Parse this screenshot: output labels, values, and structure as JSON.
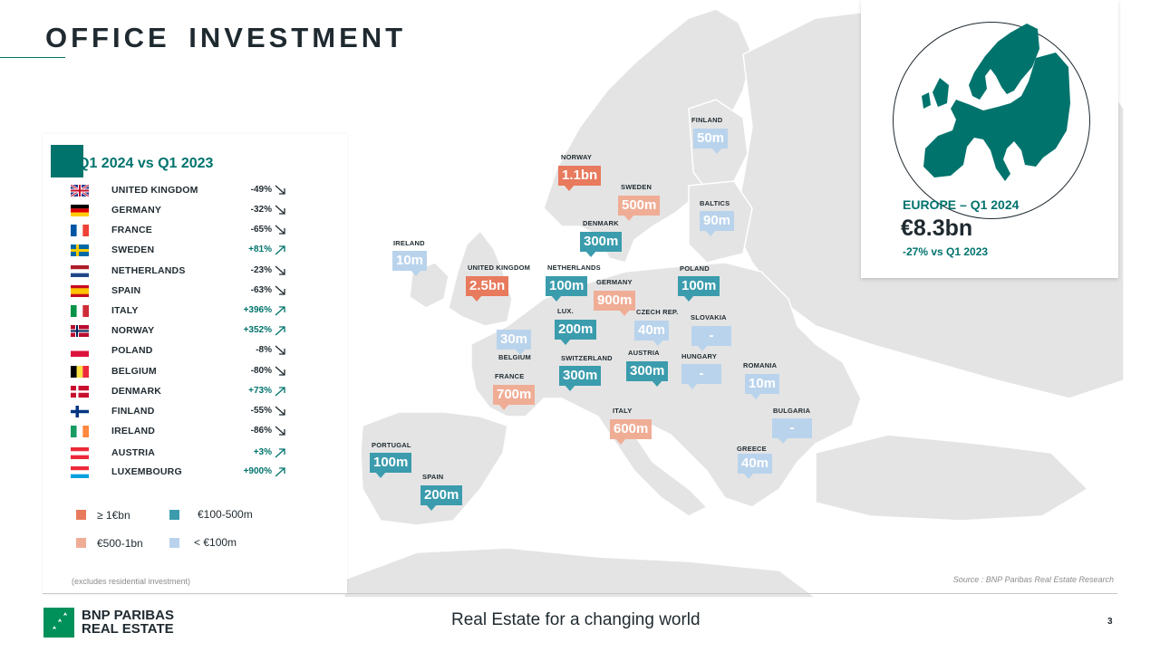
{
  "header": {
    "title": "OFFICE  INVESTMENT"
  },
  "card": {
    "title": "Q1 2024 vs Q1 2023",
    "rows": [
      {
        "country": "UNITED  KINGDOM",
        "change": "-49%",
        "dir": "down",
        "flag": "uk"
      },
      {
        "country": "GERMANY",
        "change": "-32%",
        "dir": "down",
        "flag": "de"
      },
      {
        "country": "FRANCE",
        "change": "-65%",
        "dir": "down",
        "flag": "fr"
      },
      {
        "country": "SWEDEN",
        "change": "+81%",
        "dir": "up",
        "flag": "se"
      },
      {
        "country": "NETHERLANDS",
        "change": "-23%",
        "dir": "down",
        "flag": "nl"
      },
      {
        "country": "SPAIN",
        "change": "-63%",
        "dir": "down",
        "flag": "es"
      },
      {
        "country": "ITALY",
        "change": "+396%",
        "dir": "up",
        "flag": "it"
      },
      {
        "country": "NORWAY",
        "change": "+352%",
        "dir": "up",
        "flag": "no"
      },
      {
        "country": "POLAND",
        "change": "-8%",
        "dir": "down",
        "flag": "pl"
      },
      {
        "country": "BELGIUM",
        "change": "-80%",
        "dir": "down",
        "flag": "be"
      },
      {
        "country": "DENMARK",
        "change": "+73%",
        "dir": "up",
        "flag": "dk"
      },
      {
        "country": "FINLAND",
        "change": "-55%",
        "dir": "down",
        "flag": "fi"
      },
      {
        "country": "IRELAND",
        "change": "-86%",
        "dir": "down",
        "flag": "ie"
      },
      {
        "country": "AUSTRIA",
        "change": "+3%",
        "dir": "up",
        "flag": "at"
      },
      {
        "country": "LUXEMBOURG",
        "change": "+900%",
        "dir": "up",
        "flag": "lu"
      }
    ]
  },
  "legend": {
    "ge1bn": "≥ 1€bn",
    "m100_500": "€100-500m",
    "m500_1bn": "€500-1bn",
    "lt100m": "< €100m"
  },
  "colors": {
    "orange": "#e87a5d",
    "salmon": "#f0ad96",
    "teal": "#3b9cad",
    "light": "#b9d3ec",
    "brand": "#00736d"
  },
  "footnote": "(excludes residential investment)",
  "source": "Source : BNP Paribas Real Estate Research",
  "map": {
    "norway": {
      "label": "NORWAY",
      "value": "1.1bn"
    },
    "finland": {
      "label": "FINLAND",
      "value": "50m"
    },
    "sweden": {
      "label": "SWEDEN",
      "value": "500m"
    },
    "denmark": {
      "label": "DENMARK",
      "value": "300m"
    },
    "baltics": {
      "label": "BALTICS",
      "value": "90m"
    },
    "ireland": {
      "label": "IRELAND",
      "value": "10m"
    },
    "uk": {
      "label": "UNITED  KINGDOM",
      "value": "2.5bn"
    },
    "netherlands": {
      "label": "NETHERLANDS",
      "value": "100m"
    },
    "germany": {
      "label": "GERMANY",
      "value": "900m"
    },
    "poland": {
      "label": "POLAND",
      "value": "100m"
    },
    "lux": {
      "label": "LUX.",
      "value": "200m"
    },
    "belgium": {
      "label": "BELGIUM",
      "value": "30m"
    },
    "czech": {
      "label": "CZECH REP.",
      "value": "40m"
    },
    "slovakia": {
      "label": "SLOVAKIA",
      "value": "-"
    },
    "austria": {
      "label": "AUSTRIA",
      "value": "300m"
    },
    "hungary": {
      "label": "HUNGARY",
      "value": "-"
    },
    "switzerland": {
      "label": "SWITZERLAND",
      "value": "300m"
    },
    "france": {
      "label": "FRANCE",
      "value": "700m"
    },
    "romania": {
      "label": "ROMANIA",
      "value": "10m"
    },
    "bulgaria": {
      "label": "BULGARIA",
      "value": "-"
    },
    "italy": {
      "label": "ITALY",
      "value": "600m"
    },
    "greece": {
      "label": "GREECE",
      "value": "40m"
    },
    "portugal": {
      "label": "PORTUGAL",
      "value": "100m"
    },
    "spain": {
      "label": "SPAIN",
      "value": "200m"
    }
  },
  "europe": {
    "label": "EUROPE – Q1 2024",
    "value": "€8.3bn",
    "change": "-27%  vs Q1 2023"
  },
  "footer": {
    "logo_line1": "BNP PARIBAS",
    "logo_line2": "REAL ESTATE",
    "tagline": "Real Estate for a changing world",
    "page": "3"
  }
}
